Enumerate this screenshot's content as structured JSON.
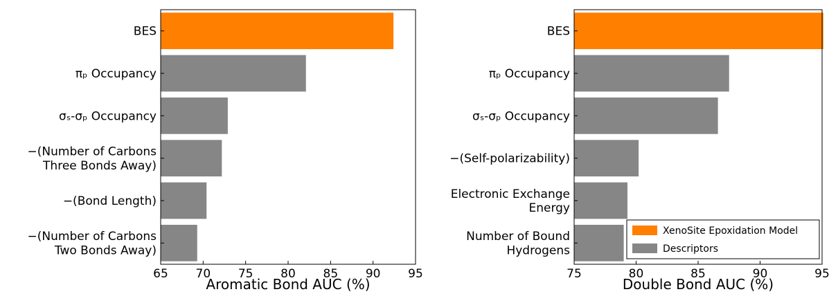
{
  "chart_data": [
    {
      "type": "barh",
      "xlabel": "Aromatic Bond AUC (%)",
      "categories": [
        "BES",
        "πₚ Occupancy",
        "σₛ-σₚ Occupancy",
        "−(Number of Carbons\nThree Bonds Away)",
        "−(Bond Length)",
        "−(Number of Carbons\nTwo Bonds Away)"
      ],
      "values": [
        92.4,
        82.1,
        72.9,
        72.2,
        70.4,
        69.3
      ],
      "colors": [
        "#ff7f00",
        "#868686",
        "#868686",
        "#868686",
        "#868686",
        "#868686"
      ],
      "xlim": [
        65,
        95
      ],
      "xticks": [
        65,
        70,
        75,
        80,
        85,
        90,
        95
      ]
    },
    {
      "type": "barh",
      "xlabel": "Double Bond AUC (%)",
      "categories": [
        "BES",
        "πₚ Occupancy",
        "σₛ-σₚ Occupancy",
        "−(Self-polarizability)",
        "Electronic Exchange\nEnergy",
        "Number of Bound\nHydrogens"
      ],
      "values": [
        95.1,
        87.5,
        86.6,
        80.2,
        79.3,
        79.0
      ],
      "colors": [
        "#ff7f00",
        "#868686",
        "#868686",
        "#868686",
        "#868686",
        "#868686"
      ],
      "xlim": [
        75,
        95
      ],
      "xticks": [
        75,
        80,
        85,
        90,
        95
      ],
      "legend": [
        {
          "name": "XenoSite Epoxidation Model",
          "color": "#ff7f00"
        },
        {
          "name": "Descriptors",
          "color": "#868686"
        }
      ],
      "legend_corner": "lower right"
    }
  ]
}
